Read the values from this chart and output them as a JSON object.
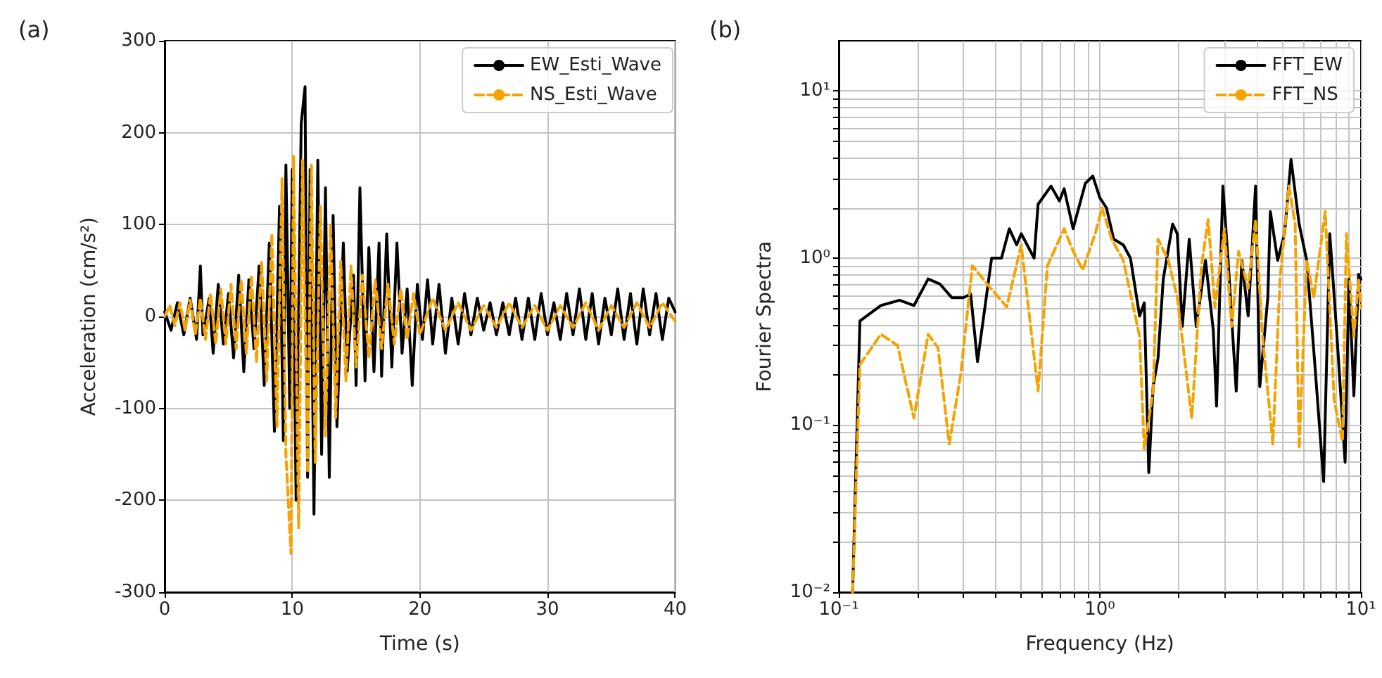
{
  "chart_data": [
    {
      "type": "line",
      "title": "(a)",
      "xlabel": "Time (s)",
      "ylabel": "Acceleration (cm/s²)",
      "xlim": [
        0,
        40
      ],
      "xticks": [
        0,
        10,
        20,
        30,
        40
      ],
      "ylim": [
        -300,
        300
      ],
      "yticks": [
        -300,
        -200,
        -100,
        0,
        100,
        200,
        300
      ],
      "grid": true,
      "legend": "top right",
      "marker": "none",
      "series": [
        {
          "name": "EW_Esti_Wave",
          "color": "#000000",
          "line_style": "solid",
          "x": [
            0,
            0.5,
            1,
            1.5,
            2,
            2.5,
            2.8,
            3,
            3.5,
            3.8,
            4.2,
            4.6,
            5,
            5.4,
            5.8,
            6.2,
            6.6,
            7,
            7.4,
            7.8,
            8.2,
            8.6,
            9,
            9.3,
            9.5,
            9.8,
            10,
            10.3,
            10.7,
            11,
            11.2,
            11.4,
            11.7,
            12,
            12.3,
            12.6,
            12.9,
            13.2,
            13.5,
            14,
            14.3,
            14.8,
            15,
            15.3,
            15.7,
            16,
            16.4,
            16.8,
            17,
            17.4,
            17.8,
            18.2,
            18.6,
            19,
            19.4,
            19.8,
            20.2,
            20.6,
            21,
            21.5,
            22,
            22.5,
            23,
            23.5,
            24,
            24.5,
            25,
            25.5,
            26,
            26.5,
            27,
            27.5,
            28,
            28.5,
            29,
            29.5,
            30,
            30.5,
            31,
            31.5,
            32,
            32.5,
            33,
            33.5,
            34,
            34.5,
            35,
            35.5,
            36,
            36.5,
            37,
            37.5,
            38,
            38.5,
            39,
            39.5,
            40
          ],
          "values": [
            5,
            -15,
            15,
            -20,
            20,
            -25,
            55,
            -20,
            20,
            -40,
            35,
            -30,
            25,
            -45,
            45,
            -60,
            40,
            -35,
            55,
            -75,
            80,
            -125,
            120,
            -135,
            165,
            -100,
            160,
            -200,
            210,
            250,
            -175,
            160,
            -215,
            170,
            -150,
            140,
            -175,
            110,
            -120,
            80,
            -60,
            45,
            -75,
            140,
            -70,
            75,
            -60,
            80,
            -65,
            90,
            -55,
            80,
            -40,
            30,
            -75,
            35,
            -25,
            40,
            -30,
            35,
            -40,
            20,
            -30,
            25,
            -20,
            20,
            -15,
            15,
            -20,
            15,
            -20,
            20,
            -25,
            20,
            -25,
            25,
            -20,
            15,
            -25,
            25,
            -20,
            30,
            -25,
            25,
            -30,
            20,
            -20,
            30,
            -25,
            25,
            -30,
            30,
            -20,
            25,
            -25,
            20,
            5
          ]
        },
        {
          "name": "NS_Esti_Wave",
          "color": "#f5a300",
          "line_style": "dashed",
          "x": [
            0,
            0.4,
            0.8,
            1.2,
            1.6,
            2,
            2.4,
            2.8,
            3.2,
            3.6,
            4,
            4.4,
            4.8,
            5.2,
            5.6,
            6,
            6.4,
            6.8,
            7.2,
            7.6,
            8,
            8.4,
            8.8,
            9.2,
            9.5,
            9.9,
            10.1,
            10.5,
            10.8,
            11.2,
            11.5,
            11.8,
            12.2,
            12.6,
            13,
            13.4,
            13.8,
            14.2,
            14.6,
            15,
            15.5,
            16,
            16.5,
            17,
            17.5,
            18,
            18.5,
            19,
            19.5,
            20,
            21,
            22,
            23,
            24,
            25,
            26,
            27,
            28,
            29,
            30,
            31,
            32,
            33,
            34,
            35,
            36,
            37,
            38,
            39,
            40
          ],
          "values": [
            0,
            12,
            -10,
            15,
            -15,
            18,
            -20,
            20,
            -25,
            25,
            -30,
            30,
            -30,
            35,
            -35,
            40,
            -40,
            45,
            -50,
            60,
            -70,
            90,
            -120,
            150,
            -150,
            -258,
            175,
            -230,
            170,
            -170,
            165,
            -160,
            120,
            -130,
            100,
            -110,
            60,
            -70,
            55,
            -55,
            45,
            -45,
            40,
            -35,
            35,
            -30,
            30,
            -25,
            25,
            -20,
            20,
            -15,
            15,
            -15,
            12,
            -12,
            15,
            -12,
            12,
            -15,
            12,
            -12,
            15,
            -15,
            12,
            -12,
            15,
            -12,
            15,
            -5
          ]
        }
      ]
    },
    {
      "type": "line",
      "title": "(b)",
      "xlabel": "Frequency (Hz)",
      "ylabel": "Fourier Spectra",
      "log": "xy",
      "xlim": [
        0.1,
        10
      ],
      "xticks": [
        {
          "value": 0.1,
          "label": "10⁻¹"
        },
        {
          "value": 0.2,
          "label": null
        },
        {
          "value": 0.3,
          "label": null
        },
        {
          "value": 0.4,
          "label": null
        },
        {
          "value": 0.5,
          "label": null
        },
        {
          "value": 0.6,
          "label": null
        },
        {
          "value": 0.7,
          "label": null
        },
        {
          "value": 0.8,
          "label": null
        },
        {
          "value": 0.9,
          "label": null
        },
        {
          "value": 1,
          "label": "10⁰"
        },
        {
          "value": 2,
          "label": null
        },
        {
          "value": 3,
          "label": null
        },
        {
          "value": 4,
          "label": null
        },
        {
          "value": 5,
          "label": null
        },
        {
          "value": 6,
          "label": null
        },
        {
          "value": 7,
          "label": null
        },
        {
          "value": 8,
          "label": null
        },
        {
          "value": 9,
          "label": null
        },
        {
          "value": 10,
          "label": "10¹"
        }
      ],
      "ylim": [
        0.01,
        20
      ],
      "yticks": [
        {
          "value": 0.01,
          "label": "10⁻²"
        },
        {
          "value": 0.02,
          "label": null
        },
        {
          "value": 0.03,
          "label": null
        },
        {
          "value": 0.04,
          "label": null
        },
        {
          "value": 0.05,
          "label": null
        },
        {
          "value": 0.06,
          "label": null
        },
        {
          "value": 0.07,
          "label": null
        },
        {
          "value": 0.08,
          "label": null
        },
        {
          "value": 0.09,
          "label": null
        },
        {
          "value": 0.1,
          "label": "10⁻¹"
        },
        {
          "value": 0.2,
          "label": null
        },
        {
          "value": 0.3,
          "label": null
        },
        {
          "value": 0.4,
          "label": null
        },
        {
          "value": 0.5,
          "label": null
        },
        {
          "value": 0.6,
          "label": null
        },
        {
          "value": 0.7,
          "label": null
        },
        {
          "value": 0.8,
          "label": null
        },
        {
          "value": 0.9,
          "label": null
        },
        {
          "value": 1,
          "label": "10⁰"
        },
        {
          "value": 2,
          "label": null
        },
        {
          "value": 3,
          "label": null
        },
        {
          "value": 4,
          "label": null
        },
        {
          "value": 5,
          "label": null
        },
        {
          "value": 6,
          "label": null
        },
        {
          "value": 7,
          "label": null
        },
        {
          "value": 8,
          "label": null
        },
        {
          "value": 9,
          "label": null
        },
        {
          "value": 10,
          "label": "10¹"
        }
      ],
      "grid": true,
      "legend": "top right",
      "marker": "none",
      "series": [
        {
          "name": "FFT_EW",
          "color": "#000000",
          "line_style": "solid",
          "x": [
            0.113,
            0.1205,
            0.145,
            0.171,
            0.194,
            0.22,
            0.244,
            0.271,
            0.3,
            0.32,
            0.34,
            0.385,
            0.42,
            0.45,
            0.48,
            0.5,
            0.56,
            0.58,
            0.65,
            0.7,
            0.73,
            0.79,
            0.88,
            0.94,
            1.0,
            1.06,
            1.13,
            1.23,
            1.31,
            1.42,
            1.48,
            1.54,
            1.6,
            1.67,
            1.75,
            1.9,
            1.98,
            2.07,
            2.2,
            2.34,
            2.54,
            2.72,
            2.8,
            2.96,
            3.1,
            3.33,
            3.5,
            3.7,
            3.95,
            4.1,
            4.4,
            4.5,
            4.8,
            5.1,
            5.4,
            5.8,
            6.2,
            6.6,
            7.2,
            7.6,
            8.1,
            8.7,
            9.0,
            9.4,
            9.8,
            10
          ],
          "values": [
            0.01,
            0.42,
            0.52,
            0.56,
            0.52,
            0.75,
            0.7,
            0.58,
            0.58,
            0.61,
            0.24,
            1.0,
            1.0,
            1.5,
            1.2,
            1.4,
            1.0,
            2.1,
            2.7,
            2.2,
            2.6,
            1.5,
            2.8,
            3.1,
            2.3,
            2.0,
            1.3,
            1.2,
            1.0,
            0.45,
            0.54,
            0.052,
            0.17,
            0.25,
            0.75,
            1.6,
            1.4,
            0.39,
            1.3,
            0.39,
            0.97,
            0.37,
            0.13,
            2.7,
            0.97,
            0.16,
            0.97,
            0.45,
            2.7,
            0.17,
            0.58,
            1.9,
            0.97,
            1.4,
            3.9,
            1.6,
            0.97,
            0.28,
            0.046,
            1.4,
            0.34,
            0.06,
            0.75,
            0.15,
            0.8,
            0.75
          ]
        },
        {
          "name": "FFT_NS",
          "color": "#f5a300",
          "line_style": "dashed",
          "x": [
            0.113,
            0.1205,
            0.145,
            0.168,
            0.194,
            0.22,
            0.24,
            0.265,
            0.293,
            0.325,
            0.37,
            0.44,
            0.5,
            0.58,
            0.63,
            0.73,
            0.79,
            0.86,
            0.96,
            1.02,
            1.11,
            1.23,
            1.42,
            1.48,
            1.6,
            1.67,
            1.83,
            1.98,
            2.25,
            2.45,
            2.6,
            2.76,
            3.0,
            3.2,
            3.4,
            3.7,
            3.95,
            4.2,
            4.6,
            4.9,
            5.3,
            5.6,
            5.8,
            6.2,
            6.6,
            7.3,
            7.9,
            8.5,
            8.8,
            9.4,
            9.8,
            10
          ],
          "values": [
            0.01,
            0.23,
            0.35,
            0.3,
            0.11,
            0.35,
            0.29,
            0.077,
            0.2,
            0.9,
            0.7,
            0.51,
            1.2,
            0.16,
            0.9,
            1.5,
            1.1,
            0.85,
            1.4,
            2.0,
            1.3,
            0.97,
            0.34,
            0.072,
            0.16,
            1.3,
            0.97,
            0.58,
            0.11,
            0.9,
            1.7,
            0.51,
            1.5,
            0.39,
            1.1,
            0.66,
            1.7,
            0.34,
            0.077,
            0.75,
            2.7,
            1.6,
            0.072,
            0.97,
            0.58,
            1.9,
            0.14,
            0.08,
            1.4,
            0.34,
            0.75,
            0.51
          ]
        }
      ]
    }
  ]
}
